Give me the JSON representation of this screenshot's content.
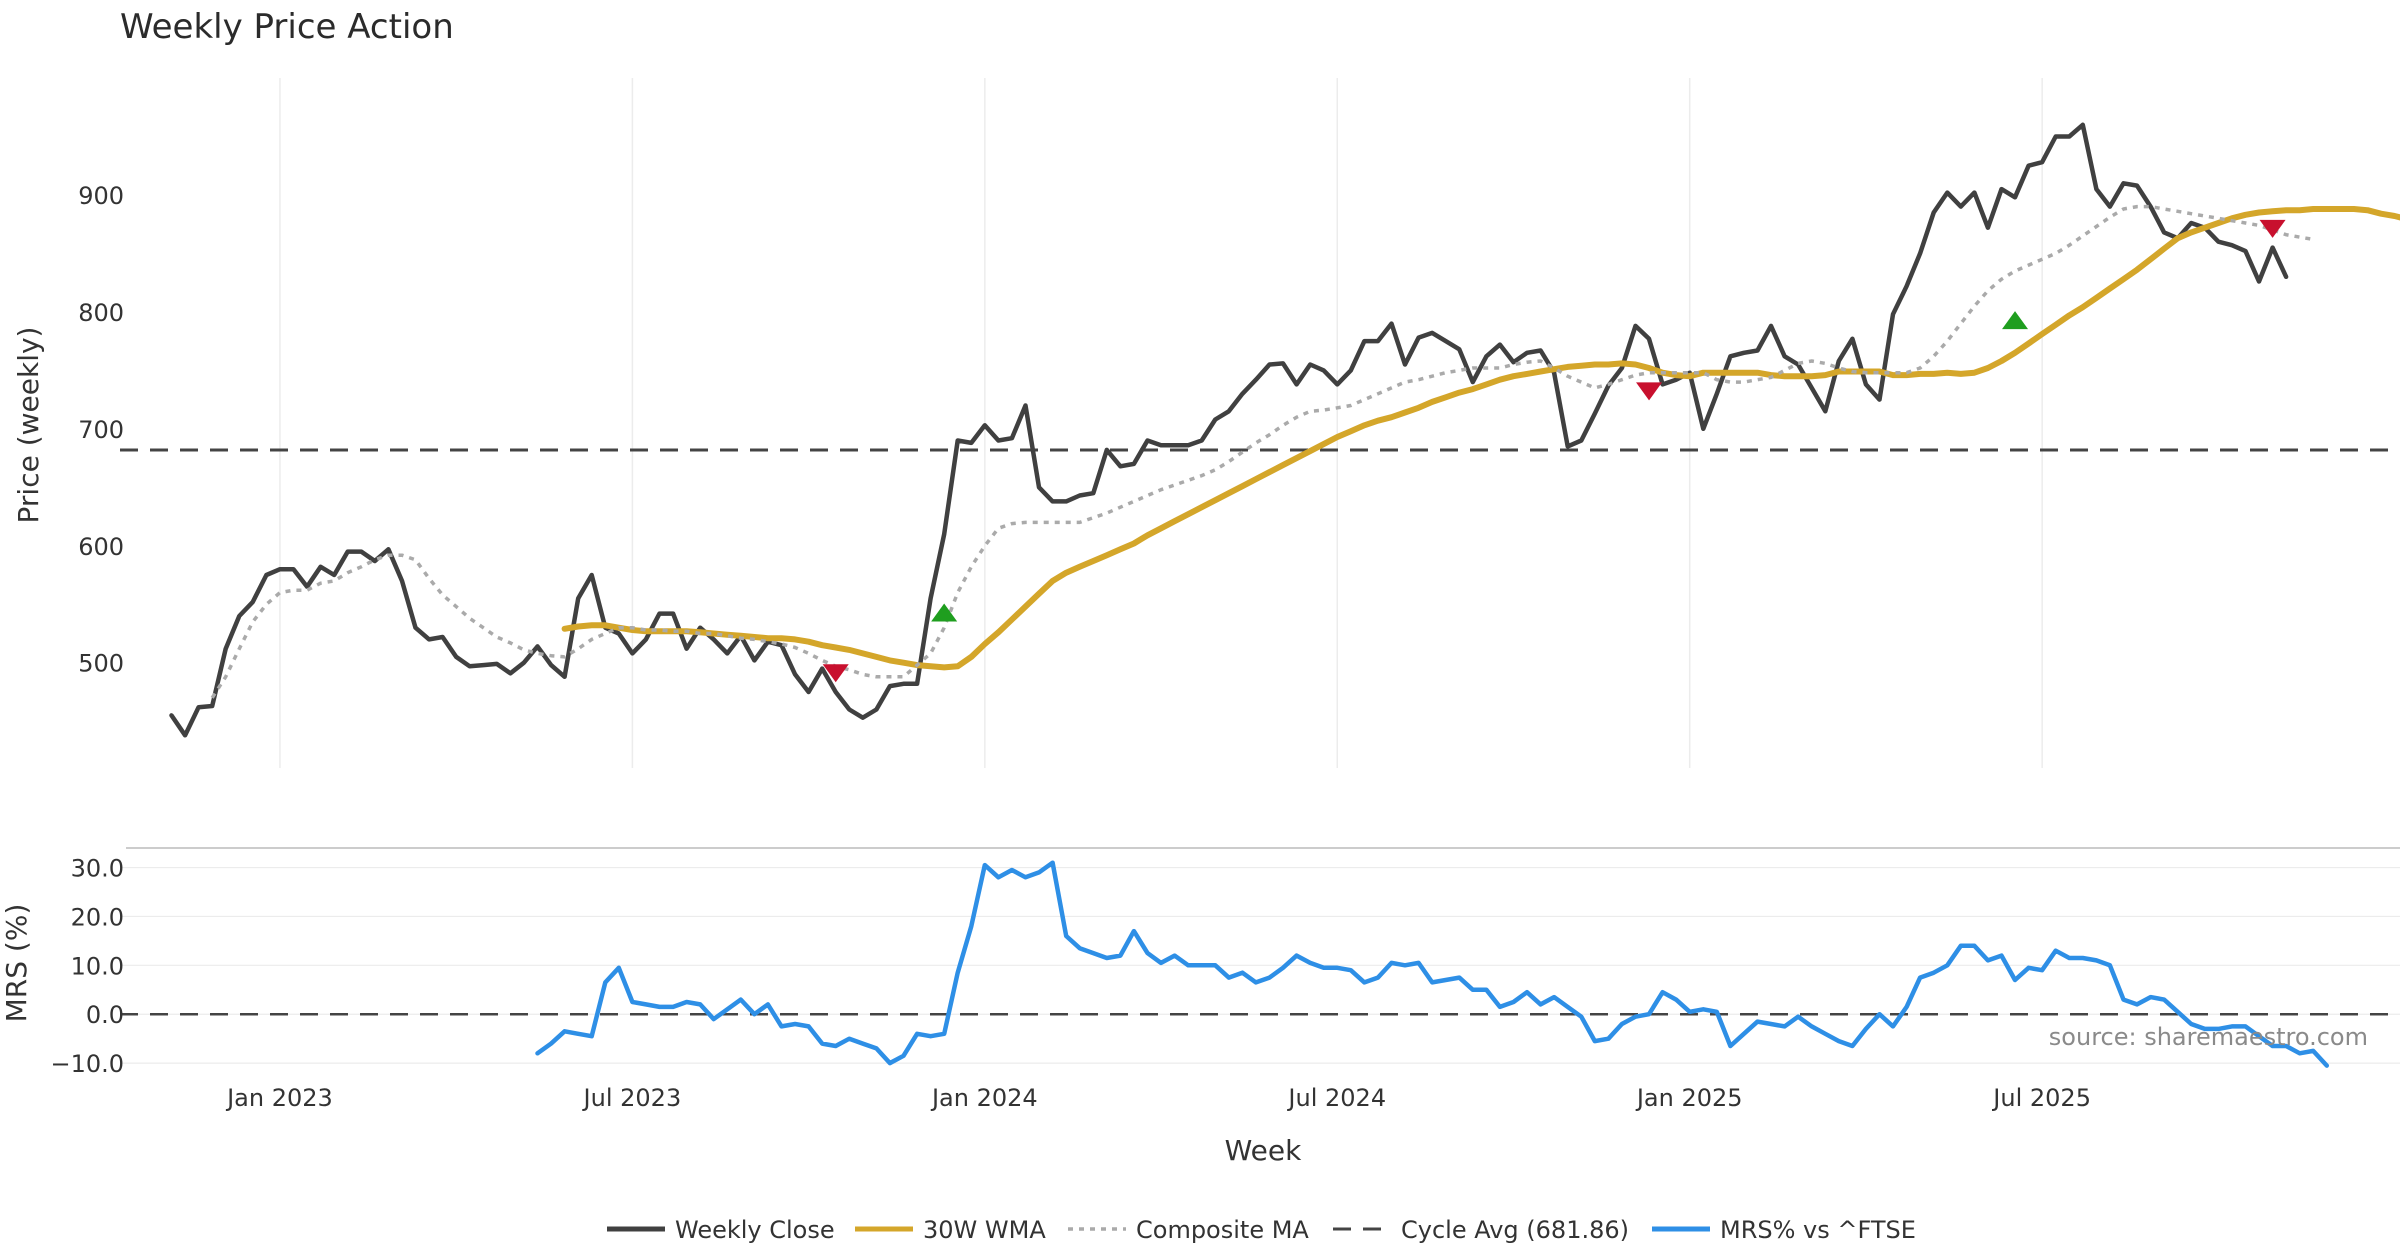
{
  "chart_data": {
    "type": "line",
    "title": "Weekly Price Action",
    "source_text": "source: sharemaestro.com",
    "x_axis": {
      "label": "Week",
      "ticks": [
        {
          "label": "Jan 2023",
          "x": 13
        },
        {
          "label": "Jul 2023",
          "x": 39
        },
        {
          "label": "Jan 2024",
          "x": 65
        },
        {
          "label": "Jul 2024",
          "x": 91
        },
        {
          "label": "Jan 2025",
          "x": 117
        },
        {
          "label": "Jul 2025",
          "x": 143
        }
      ],
      "range": [
        5,
        163
      ]
    },
    "panels": [
      {
        "id": "price",
        "ylabel": "Price (weekly)",
        "ylim": [
          410,
          1000
        ],
        "yticks": [
          500,
          600,
          700,
          800,
          900
        ],
        "ytick_labels": [
          "500",
          "600",
          "700",
          "800",
          "900"
        ],
        "reference_line": {
          "name": "Cycle Avg (681.86)",
          "value": 681.86,
          "color": "#444444"
        },
        "series": [
          {
            "name": "Weekly Close",
            "color": "#404040",
            "style": "solid",
            "x_start": 5,
            "values": [
              455,
              438,
              462,
              463,
              512,
              540,
              552,
              575,
              580,
              580,
              565,
              582,
              575,
              595,
              595,
              587,
              597,
              570,
              530,
              520,
              522,
              505,
              497,
              498,
              499,
              491,
              500,
              514,
              498,
              488,
              555,
              575,
              530,
              525,
              508,
              520,
              542,
              542,
              512,
              530,
              520,
              508,
              523,
              502,
              518,
              515,
              490,
              475,
              495,
              475,
              460,
              453,
              460,
              480,
              482,
              482,
              555,
              610,
              690,
              688,
              703,
              690,
              692,
              720,
              650,
              638,
              638,
              643,
              645,
              682,
              668,
              670,
              690,
              686,
              686,
              686,
              690,
              708,
              715,
              730,
              742,
              755,
              756,
              738,
              755,
              750,
              738,
              750,
              775,
              775,
              790,
              755,
              778,
              782,
              775,
              768,
              740,
              762,
              772,
              757,
              765,
              767,
              748,
              685,
              690,
              713,
              737,
              752,
              788,
              777,
              738,
              742,
              748,
              700,
              730,
              762,
              765,
              767,
              788,
              762,
              755,
              735,
              715,
              758,
              777,
              738,
              725,
              798,
              822,
              850,
              885,
              902,
              890,
              902,
              872,
              905,
              898,
              925,
              928,
              950,
              950,
              960,
              905,
              890,
              910,
              908,
              890,
              868,
              863,
              876,
              872,
              860,
              857,
              852,
              826,
              855,
              830
            ]
          },
          {
            "name": "30W WMA",
            "color": "#D4A62A",
            "style": "solid",
            "x_start": 34,
            "values": [
              529,
              531,
              532,
              532,
              530,
              528,
              527,
              527,
              527,
              527,
              526,
              525,
              524,
              523,
              522,
              521,
              521,
              520,
              518,
              515,
              513,
              511,
              508,
              505,
              502,
              500,
              498,
              497,
              496,
              497,
              505,
              516,
              526,
              537,
              548,
              559,
              570,
              577,
              582,
              587,
              592,
              597,
              602,
              609,
              615,
              621,
              627,
              633,
              639,
              645,
              651,
              657,
              663,
              669,
              675,
              681,
              687,
              693,
              698,
              703,
              707,
              710,
              714,
              718,
              723,
              727,
              731,
              734,
              738,
              742,
              745,
              747,
              749,
              751,
              753,
              754,
              755,
              755,
              756,
              755,
              752,
              748,
              746,
              745,
              748,
              748,
              748,
              748,
              748,
              746,
              745,
              745,
              745,
              746,
              749,
              749,
              749,
              749,
              746,
              746,
              747,
              747,
              748,
              747,
              748,
              752,
              758,
              765,
              773,
              781,
              789,
              797,
              804,
              812,
              820,
              828,
              836,
              845,
              854,
              863,
              868,
              872,
              876,
              880,
              883,
              885,
              886,
              887,
              887,
              888,
              888,
              888,
              888,
              887,
              884,
              882,
              879
            ]
          },
          {
            "name": "Composite MA",
            "color": "#AAAAAA",
            "style": "dotted",
            "x_start": 8,
            "values": [
              470,
              488,
              512,
              535,
              550,
              560,
              562,
              562,
              568,
              570,
              577,
              582,
              588,
              592,
              592,
              588,
              572,
              558,
              548,
              538,
              530,
              522,
              517,
              511,
              508,
              506,
              505,
              512,
              520,
              525,
              530,
              530,
              528,
              528,
              527,
              527,
              525,
              525,
              523,
              521,
              520,
              518,
              516,
              513,
              508,
              502,
              497,
              494,
              490,
              488,
              488,
              488,
              498,
              508,
              530,
              560,
              582,
              600,
              615,
              619,
              620,
              620,
              620,
              620,
              620,
              624,
              628,
              633,
              638,
              643,
              648,
              652,
              656,
              660,
              665,
              672,
              680,
              688,
              695,
              703,
              710,
              715,
              716,
              718,
              720,
              725,
              730,
              735,
              740,
              742,
              745,
              748,
              750,
              752,
              752,
              752,
              755,
              757,
              758,
              752,
              745,
              740,
              735,
              738,
              742,
              746,
              748,
              748,
              748,
              748,
              748,
              742,
              740,
              740,
              742,
              744,
              750,
              756,
              758,
              756,
              752,
              749,
              748,
              748,
              748,
              748,
              752,
              762,
              775,
              790,
              805,
              818,
              828,
              835,
              840,
              845,
              850,
              857,
              865,
              873,
              881,
              888,
              890,
              890,
              888,
              886,
              884,
              882,
              880,
              878,
              876,
              874,
              870,
              866,
              864,
              862
            ]
          },
          {
            "name": "MRS% vs ^FTSE",
            "color": "#2E8FE6",
            "style": "solid",
            "panel": "mrs",
            "x_start": 32,
            "values": []
          }
        ],
        "markers": [
          {
            "type": "sell",
            "x": 54,
            "y": 491
          },
          {
            "type": "buy",
            "x": 62,
            "y": 543
          },
          {
            "type": "sell",
            "x": 114,
            "y": 732
          },
          {
            "type": "buy",
            "x": 141,
            "y": 793
          },
          {
            "type": "sell",
            "x": 160,
            "y": 871
          }
        ],
        "marker_colors": {
          "buy": "#1F9E1F",
          "sell": "#C8102E"
        }
      },
      {
        "id": "mrs",
        "ylabel": "MRS (%)",
        "ylim": [
          -11,
          34
        ],
        "yticks": [
          -10,
          0,
          10,
          20,
          30
        ],
        "ytick_labels": [
          "−10.0",
          "0.0",
          "10.0",
          "20.0",
          "30.0"
        ],
        "reference_line": {
          "value": 0,
          "color": "#444444"
        },
        "series": [
          {
            "name": "MRS% vs ^FTSE",
            "color": "#2E8FE6",
            "style": "solid",
            "x_start": 32,
            "values": [
              -8,
              -6,
              -3.5,
              -4,
              -4.5,
              6.5,
              9.5,
              2.5,
              2,
              1.5,
              1.5,
              2.5,
              2,
              -1,
              1,
              3,
              0,
              2,
              -2.5,
              -2,
              -2.5,
              -6,
              -6.5,
              -5,
              -6,
              -7,
              -10,
              -8.5,
              -4,
              -4.5,
              -4,
              8.5,
              18,
              30.5,
              28,
              29.5,
              28,
              29,
              31,
              16,
              13.5,
              12.5,
              11.5,
              12,
              17,
              12.5,
              10.5,
              12,
              10,
              10,
              10,
              7.5,
              8.5,
              6.5,
              7.5,
              9.5,
              12,
              10.5,
              9.5,
              9.5,
              9,
              6.5,
              7.5,
              10.5,
              10,
              10.5,
              6.5,
              7,
              7.5,
              5,
              5,
              1.5,
              2.5,
              4.5,
              2,
              3.5,
              1.5,
              -0.5,
              -5.5,
              -5,
              -2,
              -0.5,
              0,
              4.5,
              3,
              0.5,
              1,
              0.5,
              -6.5,
              -4,
              -1.5,
              -2,
              -2.5,
              -0.5,
              -2.5,
              -4,
              -5.5,
              -6.5,
              -3,
              0,
              -2.5,
              1.5,
              7.5,
              8.5,
              10,
              14,
              14,
              11,
              12,
              7,
              9.5,
              9,
              13,
              11.5,
              11.5,
              11,
              10,
              3,
              2,
              3.5,
              3,
              0.5,
              -2,
              -3,
              -3,
              -2.5,
              -2.5,
              -4.5,
              -6.5,
              -6.5,
              -8,
              -7.5,
              -10.5
            ]
          }
        ]
      }
    ],
    "legend": {
      "placement": "bottom-center",
      "entries": [
        {
          "label": "Weekly Close",
          "color": "#404040",
          "style": "solid"
        },
        {
          "label": "30W WMA",
          "color": "#D4A62A",
          "style": "solid"
        },
        {
          "label": "Composite MA",
          "color": "#AAAAAA",
          "style": "dotted"
        },
        {
          "label": "Cycle Avg (681.86)",
          "color": "#444444",
          "style": "dashed"
        },
        {
          "label": "MRS% vs ^FTSE",
          "color": "#2E8FE6",
          "style": "solid"
        }
      ]
    },
    "grid": true
  }
}
